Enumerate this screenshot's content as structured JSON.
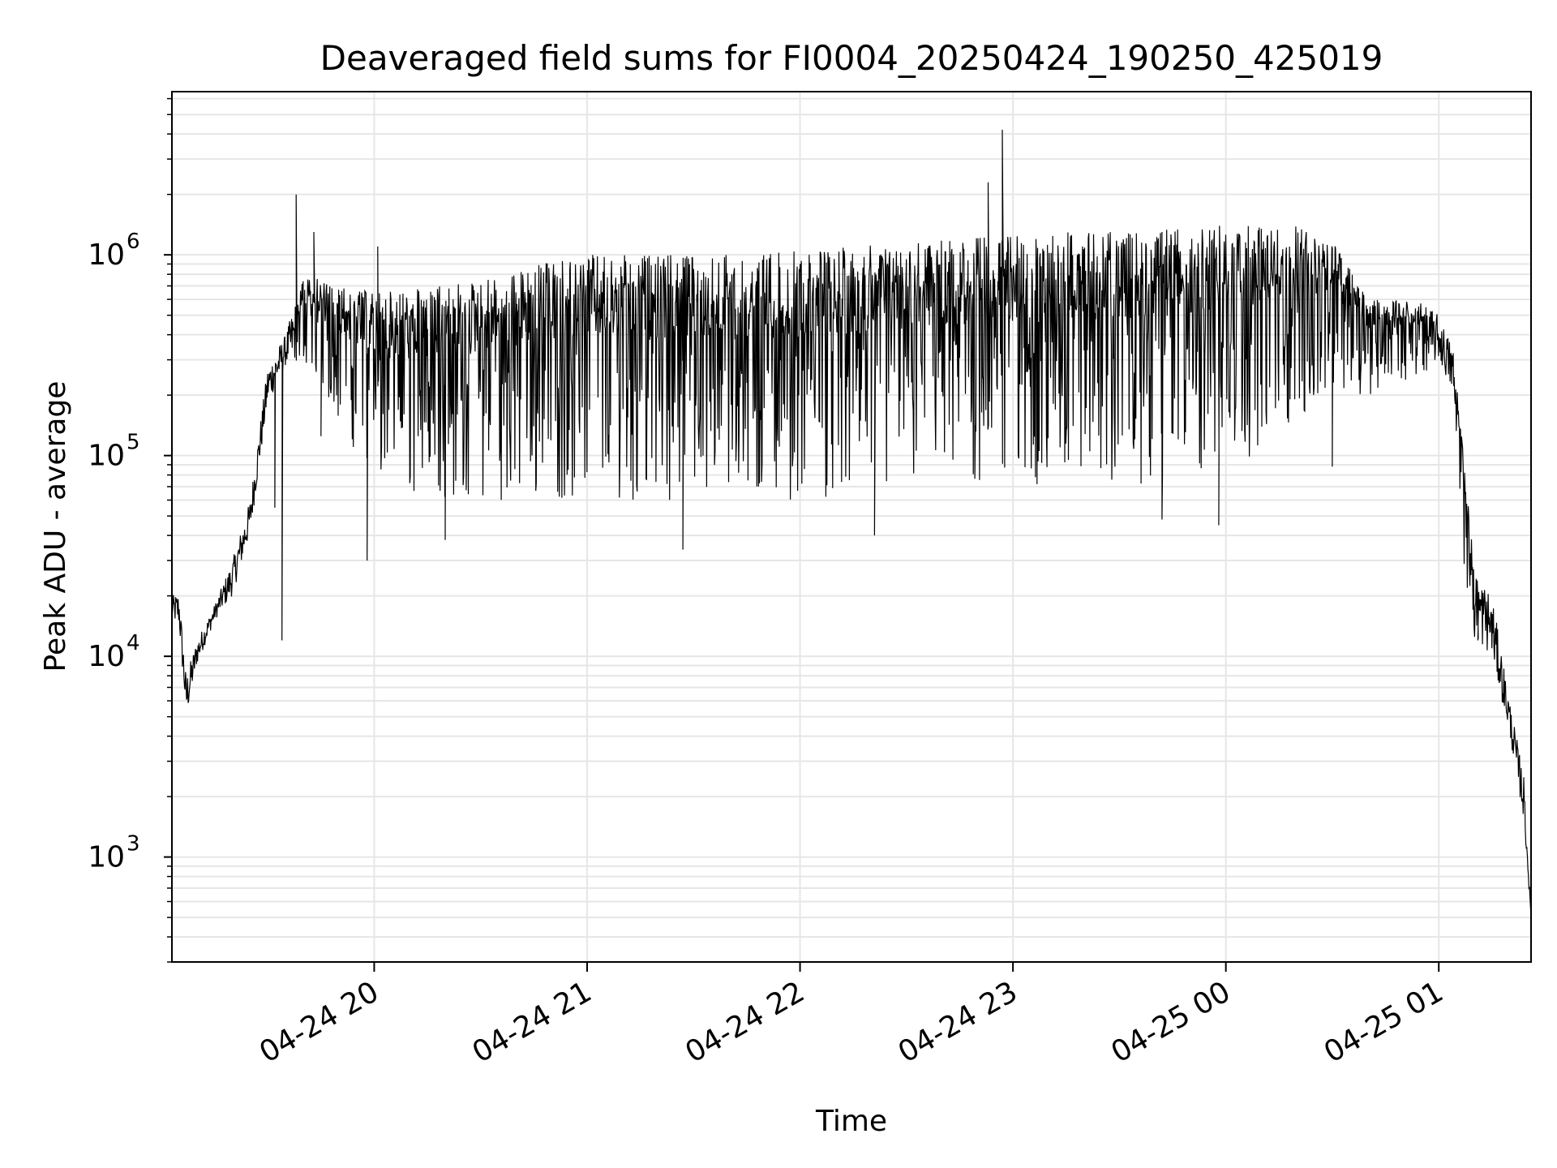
{
  "chart_data": {
    "type": "line",
    "title": "Deaveraged field sums for FI0004_20250424_190250_425019",
    "xlabel": "Time",
    "ylabel": "Peak ADU - average",
    "yscale": "log",
    "xlim": [
      "2025-04-24 19:03",
      "2025-04-25 01:26"
    ],
    "ylim": [
      300,
      6500000
    ],
    "grid": true,
    "line_color": "#000000",
    "x_ticks": [
      "04-24 20",
      "04-24 21",
      "04-24 22",
      "04-24 23",
      "04-25 00",
      "04-25 01"
    ],
    "x_tick_times": [
      "2025-04-24 20:00",
      "2025-04-24 21:00",
      "2025-04-24 22:00",
      "2025-04-24 23:00",
      "2025-04-25 00:00",
      "2025-04-25 01:00"
    ],
    "y_ticks": [
      {
        "base": "10",
        "exp": "3",
        "value": 1000
      },
      {
        "base": "10",
        "exp": "4",
        "value": 10000
      },
      {
        "base": "10",
        "exp": "5",
        "value": 100000
      },
      {
        "base": "10",
        "exp": "6",
        "value": 1000000
      }
    ],
    "series": [
      {
        "envelope": [
          {
            "t": "2025-04-24 19:03",
            "lo": 15000,
            "hi": 20000
          },
          {
            "t": "2025-04-24 19:05",
            "lo": 14000,
            "hi": 21000
          },
          {
            "t": "2025-04-24 19:07",
            "lo": 4800,
            "hi": 8000
          },
          {
            "t": "2025-04-24 19:10",
            "lo": 9000,
            "hi": 12000
          },
          {
            "t": "2025-04-24 19:15",
            "lo": 15000,
            "hi": 18000
          },
          {
            "t": "2025-04-24 19:20",
            "lo": 20000,
            "hi": 30000
          },
          {
            "t": "2025-04-24 19:25",
            "lo": 40000,
            "hi": 60000
          },
          {
            "t": "2025-04-24 19:30",
            "lo": 180000,
            "hi": 280000
          },
          {
            "t": "2025-04-24 19:35",
            "lo": 280000,
            "hi": 400000
          },
          {
            "t": "2025-04-24 19:40",
            "lo": 300000,
            "hi": 800000
          },
          {
            "t": "2025-04-24 19:50",
            "lo": 150000,
            "hi": 700000
          },
          {
            "t": "2025-04-24 20:00",
            "lo": 70000,
            "hi": 650000
          },
          {
            "t": "2025-04-24 20:20",
            "lo": 60000,
            "hi": 700000
          },
          {
            "t": "2025-04-24 20:40",
            "lo": 60000,
            "hi": 850000
          },
          {
            "t": "2025-04-24 21:00",
            "lo": 60000,
            "hi": 1000000
          },
          {
            "t": "2025-04-24 21:30",
            "lo": 60000,
            "hi": 1000000
          },
          {
            "t": "2025-04-24 22:00",
            "lo": 60000,
            "hi": 1050000
          },
          {
            "t": "2025-04-24 22:30",
            "lo": 65000,
            "hi": 1150000
          },
          {
            "t": "2025-04-24 23:00",
            "lo": 70000,
            "hi": 1250000
          },
          {
            "t": "2025-04-24 23:30",
            "lo": 70000,
            "hi": 1350000
          },
          {
            "t": "2025-04-25 00:00",
            "lo": 80000,
            "hi": 1400000
          },
          {
            "t": "2025-04-25 00:20",
            "lo": 150000,
            "hi": 1400000
          },
          {
            "t": "2025-04-25 00:30",
            "lo": 200000,
            "hi": 1200000
          },
          {
            "t": "2025-04-25 00:40",
            "lo": 200000,
            "hi": 600000
          },
          {
            "t": "2025-04-25 00:55",
            "lo": 250000,
            "hi": 600000
          },
          {
            "t": "2025-04-25 01:00",
            "lo": 300000,
            "hi": 500000
          },
          {
            "t": "2025-04-25 01:04",
            "lo": 200000,
            "hi": 350000
          },
          {
            "t": "2025-04-25 01:07",
            "lo": 30000,
            "hi": 100000
          },
          {
            "t": "2025-04-25 01:10",
            "lo": 12000,
            "hi": 28000
          },
          {
            "t": "2025-04-25 01:15",
            "lo": 10000,
            "hi": 20000
          },
          {
            "t": "2025-04-25 01:20",
            "lo": 4000,
            "hi": 6000
          },
          {
            "t": "2025-04-25 01:24",
            "lo": 1500,
            "hi": 2500
          },
          {
            "t": "2025-04-25 01:26",
            "lo": 500,
            "hi": 500
          }
        ],
        "spikes": [
          {
            "t": "2025-04-24 19:32",
            "y": 55000
          },
          {
            "t": "2025-04-24 19:34",
            "y": 12000
          },
          {
            "t": "2025-04-24 19:38",
            "y": 2000000
          },
          {
            "t": "2025-04-24 19:43",
            "y": 1300000
          },
          {
            "t": "2025-04-24 19:45",
            "y": 125000
          },
          {
            "t": "2025-04-24 19:58",
            "y": 30000
          },
          {
            "t": "2025-04-24 20:01",
            "y": 1100000
          },
          {
            "t": "2025-04-24 20:20",
            "y": 38000
          },
          {
            "t": "2025-04-24 21:27",
            "y": 34000
          },
          {
            "t": "2025-04-24 22:21",
            "y": 40000
          },
          {
            "t": "2025-04-24 22:53",
            "y": 2300000
          },
          {
            "t": "2025-04-24 22:57",
            "y": 4200000
          },
          {
            "t": "2025-04-24 23:42",
            "y": 48000
          },
          {
            "t": "2025-04-24 23:58",
            "y": 45000
          },
          {
            "t": "2025-04-25 00:30",
            "y": 88000
          },
          {
            "t": "2025-04-25 01:11",
            "y": 12000
          }
        ]
      }
    ]
  }
}
